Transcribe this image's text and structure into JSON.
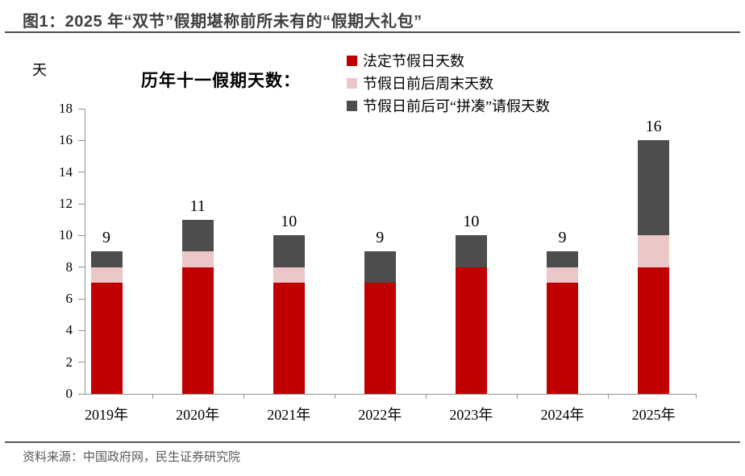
{
  "header": {
    "title": "图1：2025 年“双节”假期堪称前所未有的“假期大礼包”"
  },
  "footer": {
    "source": "资料来源：中国政府网，民生证券研究院"
  },
  "colors": {
    "legal_red": "#C00000",
    "weekend_pink": "#EBC7C8",
    "pieced_gray": "#4D4D4D",
    "axis_line": "#909090",
    "title_text": "#3F3F3F",
    "source_text": "#595959"
  },
  "chart_data": {
    "type": "bar",
    "stacked": true,
    "title": "历年十一假期天数：",
    "ylabel": "天",
    "categories": [
      "2019年",
      "2020年",
      "2021年",
      "2022年",
      "2023年",
      "2024年",
      "2025年"
    ],
    "series": [
      {
        "name": "法定节假日天数",
        "color": "#C00000",
        "values": [
          7,
          8,
          7,
          7,
          8,
          7,
          8
        ]
      },
      {
        "name": "节假日前后周末天数",
        "color": "#EBC7C8",
        "values": [
          1,
          1,
          1,
          0,
          0,
          1,
          2
        ]
      },
      {
        "name": "节假日前后可“拼凑”请假天数",
        "color": "#4D4D4D",
        "values": [
          1,
          2,
          2,
          2,
          2,
          1,
          6
        ]
      }
    ],
    "totals": [
      9,
      11,
      10,
      9,
      10,
      9,
      16
    ],
    "ylim": [
      0,
      18
    ],
    "ytick_step": 2,
    "grid": false,
    "legend_position": "top"
  }
}
